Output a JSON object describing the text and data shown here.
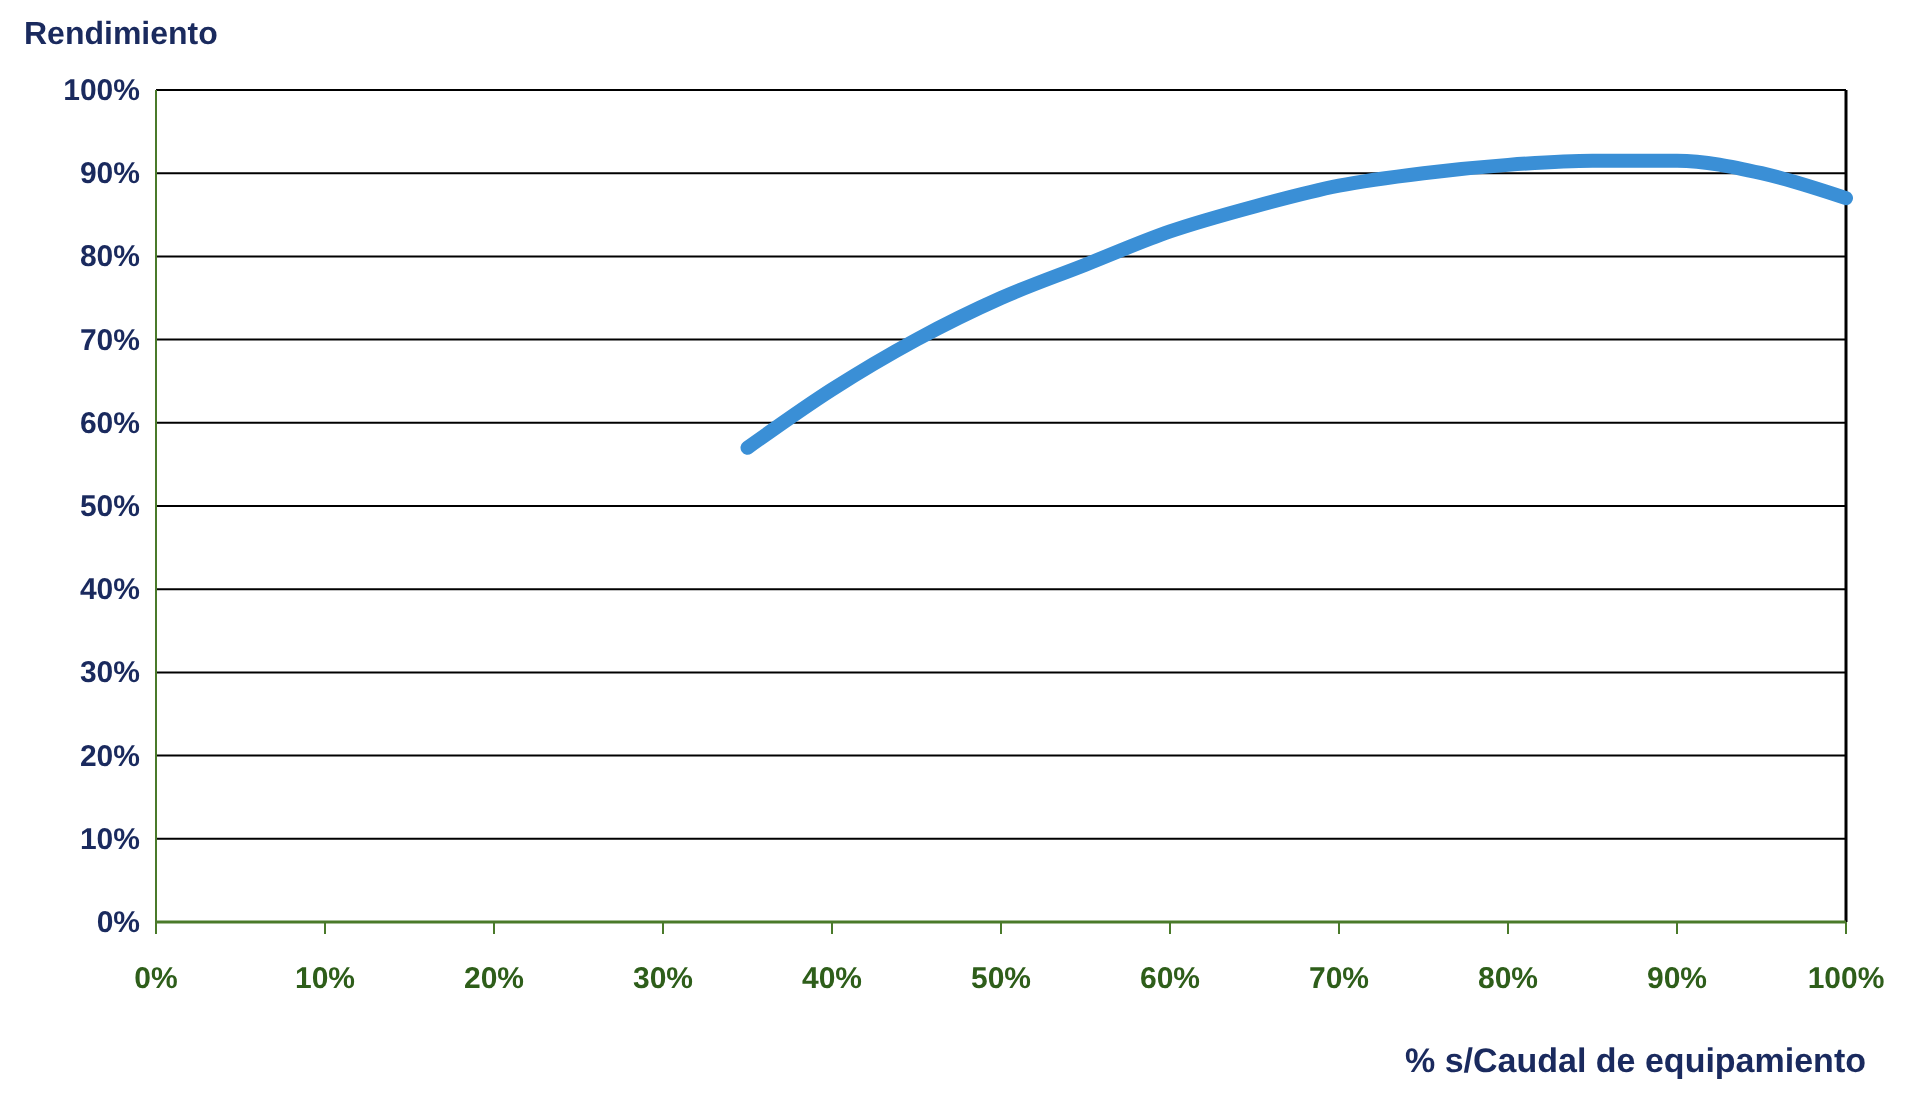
{
  "chart_data": {
    "type": "line",
    "ylabel": "Rendimiento",
    "xlabel": "% s/Caudal de equipamiento",
    "x": [
      35,
      40,
      45,
      50,
      55,
      60,
      65,
      70,
      75,
      80,
      85,
      90,
      95,
      100
    ],
    "series": [
      {
        "color": "#3a8fd6",
        "values": [
          57,
          64,
          70,
          75,
          79,
          83,
          86,
          88.5,
          90,
          91,
          91.5,
          91.5,
          90,
          87
        ]
      }
    ],
    "xlim": [
      0,
      100
    ],
    "ylim": [
      0,
      100
    ],
    "xticks": [
      {
        "value": 0,
        "label": "0%"
      },
      {
        "value": 10,
        "label": "10%"
      },
      {
        "value": 20,
        "label": "20%"
      },
      {
        "value": 30,
        "label": "30%"
      },
      {
        "value": 40,
        "label": "40%"
      },
      {
        "value": 50,
        "label": "50%"
      },
      {
        "value": 60,
        "label": "60%"
      },
      {
        "value": 70,
        "label": "70%"
      },
      {
        "value": 80,
        "label": "80%"
      },
      {
        "value": 90,
        "label": "90%"
      },
      {
        "value": 100,
        "label": "100%"
      }
    ],
    "yticks": [
      {
        "value": 0,
        "label": "0%"
      },
      {
        "value": 10,
        "label": "10%"
      },
      {
        "value": 20,
        "label": "20%"
      },
      {
        "value": 30,
        "label": "30%"
      },
      {
        "value": 40,
        "label": "40%"
      },
      {
        "value": 50,
        "label": "50%"
      },
      {
        "value": 60,
        "label": "60%"
      },
      {
        "value": 70,
        "label": "70%"
      },
      {
        "value": 80,
        "label": "80%"
      },
      {
        "value": 90,
        "label": "90%"
      },
      {
        "value": 100,
        "label": "100%"
      }
    ],
    "grid": "y",
    "marker": "none",
    "line_style": "solid"
  }
}
